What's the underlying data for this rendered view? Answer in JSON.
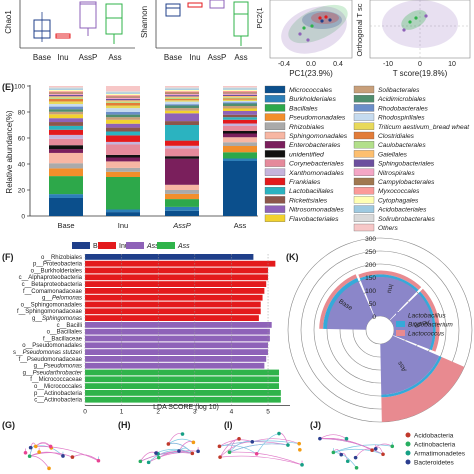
{
  "panels": {
    "top": {
      "box1_ylabel": "Chao1",
      "box2_ylabel": "Shannon",
      "groups": [
        "Base",
        "Inu",
        "AssP",
        "Ass"
      ],
      "pca_xlabel": "PC1(23.9%)",
      "pca_ylabel": "PC2(1",
      "pca_ticks": [
        "-0.4",
        "0.0",
        "0.4"
      ],
      "opls_xlabel": "T score(19.8%)",
      "opls_ylabel": "Orthogonal T sc",
      "opls_ticks": [
        "-10",
        "0",
        "10"
      ]
    },
    "E": {
      "label": "(E)",
      "ylabel": "Relative abundance(%)",
      "ytick_labels": [
        "0",
        "20",
        "40",
        "60",
        "80",
        "100"
      ],
      "groups": [
        "Base",
        "Inu",
        "AssP",
        "Ass"
      ]
    },
    "F": {
      "label": "(F)",
      "xlabel": "LDA SCORE (log 10)",
      "xtick_labels": [
        "0",
        "1",
        "2",
        "3",
        "4",
        "5"
      ],
      "legend": [
        {
          "name": "Base",
          "color": "#1f3f8a"
        },
        {
          "name": "Inu",
          "color": "#e31a1c"
        },
        {
          "name": "AssP",
          "color": "#8e62b8"
        },
        {
          "name": "Ass",
          "color": "#2fb34a"
        }
      ]
    },
    "K": {
      "label": "(K)",
      "ticks": [
        "300",
        "250",
        "200",
        "150",
        "100",
        "50",
        "0"
      ],
      "sector_labels": [
        "Base",
        "Inu",
        "AssP",
        "Ass"
      ],
      "legend": [
        {
          "name": "Lactobacillus",
          "color": "#8b86c9"
        },
        {
          "name": "Bifidobacterium",
          "color": "#36a9d9"
        },
        {
          "name": "Lactococcus",
          "color": "#e88a90"
        }
      ]
    },
    "networks": {
      "labels": [
        "(G)",
        "(H)",
        "(I)",
        "(J)"
      ],
      "legend": [
        {
          "name": "Acidobacteria",
          "color": "#c0392b"
        },
        {
          "name": "Actinobacteria",
          "color": "#27ae60"
        },
        {
          "name": "Armatimonadetes",
          "color": "#16a085"
        },
        {
          "name": "Bacteroidetes",
          "color": "#2c3e8f"
        }
      ]
    }
  },
  "chart_data": [
    {
      "type": "bar",
      "stacked": true,
      "title": "",
      "ylabel": "Relative abundance(%)",
      "ylim": [
        0,
        100
      ],
      "categories": [
        "Base",
        "Inu",
        "AssP",
        "Ass"
      ],
      "series": [
        {
          "name": "Micrococcales",
          "color": "#0b4f8c",
          "values": [
            14,
            3,
            4,
            44
          ]
        },
        {
          "name": "Burkholderiales",
          "color": "#2d7fb8",
          "values": [
            3,
            2,
            3,
            2
          ]
        },
        {
          "name": "Bacillales",
          "color": "#2da84a",
          "values": [
            14,
            25,
            6,
            5
          ]
        },
        {
          "name": "Pseudomonadales",
          "color": "#f28e2b",
          "values": [
            6,
            4,
            4,
            5
          ]
        },
        {
          "name": "Rhizobiales",
          "color": "#aaaaaa",
          "values": [
            4,
            3,
            3,
            3
          ]
        },
        {
          "name": "Sphingomonadales",
          "color": "#f7b6a3",
          "values": [
            8,
            5,
            4,
            4
          ]
        },
        {
          "name": "Enterobacterales",
          "color": "#7a1f5c",
          "values": [
            3,
            3,
            20,
            3
          ]
        },
        {
          "name": "unidentified",
          "color": "#111111",
          "values": [
            3,
            2,
            2,
            2
          ]
        },
        {
          "name": "Corynebacteriales",
          "color": "#e58a9b",
          "values": [
            5,
            8,
            6,
            4
          ]
        },
        {
          "name": "Xanthomonadales",
          "color": "#c5b4dc",
          "values": [
            3,
            2,
            2,
            2
          ]
        },
        {
          "name": "Frankiales",
          "color": "#e31a1c",
          "values": [
            4,
            5,
            4,
            3
          ]
        },
        {
          "name": "Lactobacillales",
          "color": "#2bb3c0",
          "values": [
            3,
            3,
            12,
            2
          ]
        },
        {
          "name": "Rickettsiales",
          "color": "#8c564b",
          "values": [
            3,
            3,
            3,
            2
          ]
        },
        {
          "name": "Nitrosomonadales",
          "color": "#8e62b8",
          "values": [
            3,
            3,
            6,
            3
          ]
        },
        {
          "name": "Flavobacteriales",
          "color": "#f2d22e",
          "values": [
            3,
            3,
            2,
            2
          ]
        },
        {
          "name": "Solibacterales",
          "color": "#c89f7a",
          "values": [
            2,
            2,
            2,
            2
          ]
        },
        {
          "name": "Acidimicrobiales",
          "color": "#4f8e6e",
          "values": [
            2,
            2,
            2,
            2
          ]
        },
        {
          "name": "Rhodobacterales",
          "color": "#6b8ec9",
          "values": [
            2,
            2,
            1,
            1
          ]
        },
        {
          "name": "Rhodospirillales",
          "color": "#c6dbef",
          "values": [
            2,
            3,
            2,
            1
          ]
        },
        {
          "name": "Triticum aestivum_bread wheat",
          "color": "#e8d95a",
          "values": [
            2,
            2,
            1,
            1
          ]
        },
        {
          "name": "Clostridiales",
          "color": "#e27c39",
          "values": [
            2,
            2,
            1,
            1
          ]
        },
        {
          "name": "Caulobacterales",
          "color": "#b2df8a",
          "values": [
            1,
            1,
            1,
            1
          ]
        },
        {
          "name": "Gaiellales",
          "color": "#fdbf6f",
          "values": [
            1,
            1,
            1,
            1
          ]
        },
        {
          "name": "Sphingobacteriales",
          "color": "#6c4f9e",
          "values": [
            1,
            1,
            1,
            1
          ]
        },
        {
          "name": "Nitrospirales",
          "color": "#f4a6c6",
          "values": [
            1,
            1,
            1,
            1
          ]
        },
        {
          "name": "Campylobacterales",
          "color": "#a07850",
          "values": [
            1,
            1,
            1,
            1
          ]
        },
        {
          "name": "Myxococcales",
          "color": "#fb9a99",
          "values": [
            1,
            1,
            1,
            1
          ]
        },
        {
          "name": "Cytophagales",
          "color": "#ffffb3",
          "values": [
            1,
            1,
            1,
            1
          ]
        },
        {
          "name": "Acidobacteriales",
          "color": "#9ecae1",
          "values": [
            1,
            1,
            1,
            1
          ]
        },
        {
          "name": "Solirubrobacterales",
          "color": "#d9d9d9",
          "values": [
            1,
            1,
            1,
            1
          ]
        },
        {
          "name": "Others",
          "color": "#f7c7c7",
          "values": [
            1,
            4,
            1,
            1
          ]
        }
      ]
    },
    {
      "type": "bar",
      "orientation": "horizontal",
      "xlabel": "LDA SCORE (log 10)",
      "xlim": [
        0,
        5.6
      ],
      "categories": [
        "o_Rhizobiales",
        "p_Proteobacteria",
        "o_Burkholderiales",
        "c_Alphaproteobacteria",
        "c_Betaproteobacteria",
        "f_Comamonadaceae",
        "g_Pelomonas",
        "o_Sphingomonadales",
        "f_Sphingomonadaceae",
        "g_Sphingomonas",
        "c_Bacilli",
        "o_Bacillales",
        "f_Bacillaceae",
        "o_Pseudomonadales",
        "s_Pseudomonas stutzeri",
        "f_Pseudomonadaceae",
        "g_Pseudomonas",
        "g_Pseudarthrobacter",
        "f_Micrococcaceae",
        "o_Micrococcales",
        "p_Actinobacteria",
        "c_Actinobacteria"
      ],
      "groups": [
        "Base",
        "Inu",
        "Inu",
        "Inu",
        "Inu",
        "Inu",
        "Inu",
        "Inu",
        "Inu",
        "Inu",
        "AssP",
        "AssP",
        "AssP",
        "AssP",
        "AssP",
        "AssP",
        "AssP",
        "Ass",
        "Ass",
        "Ass",
        "Ass",
        "Ass"
      ],
      "values": [
        4.6,
        5.2,
        5.0,
        5.0,
        4.95,
        4.9,
        4.85,
        4.8,
        4.8,
        4.75,
        5.1,
        5.05,
        5.05,
        5.0,
        5.0,
        4.95,
        4.9,
        5.3,
        5.3,
        5.3,
        5.35,
        5.35
      ]
    },
    {
      "type": "bar",
      "polar": true,
      "rlim": [
        0,
        300
      ],
      "categories": [
        "Base",
        "Inu",
        "AssP",
        "Ass"
      ],
      "series": [
        {
          "name": "Lactobacillus",
          "values": [
            150,
            150,
            150,
            195
          ]
        },
        {
          "name": "Bifidobacterium",
          "values": [
            165,
            160,
            160,
            205
          ]
        },
        {
          "name": "Lactococcus",
          "values": [
            180,
            175,
            175,
            300
          ]
        }
      ]
    }
  ]
}
